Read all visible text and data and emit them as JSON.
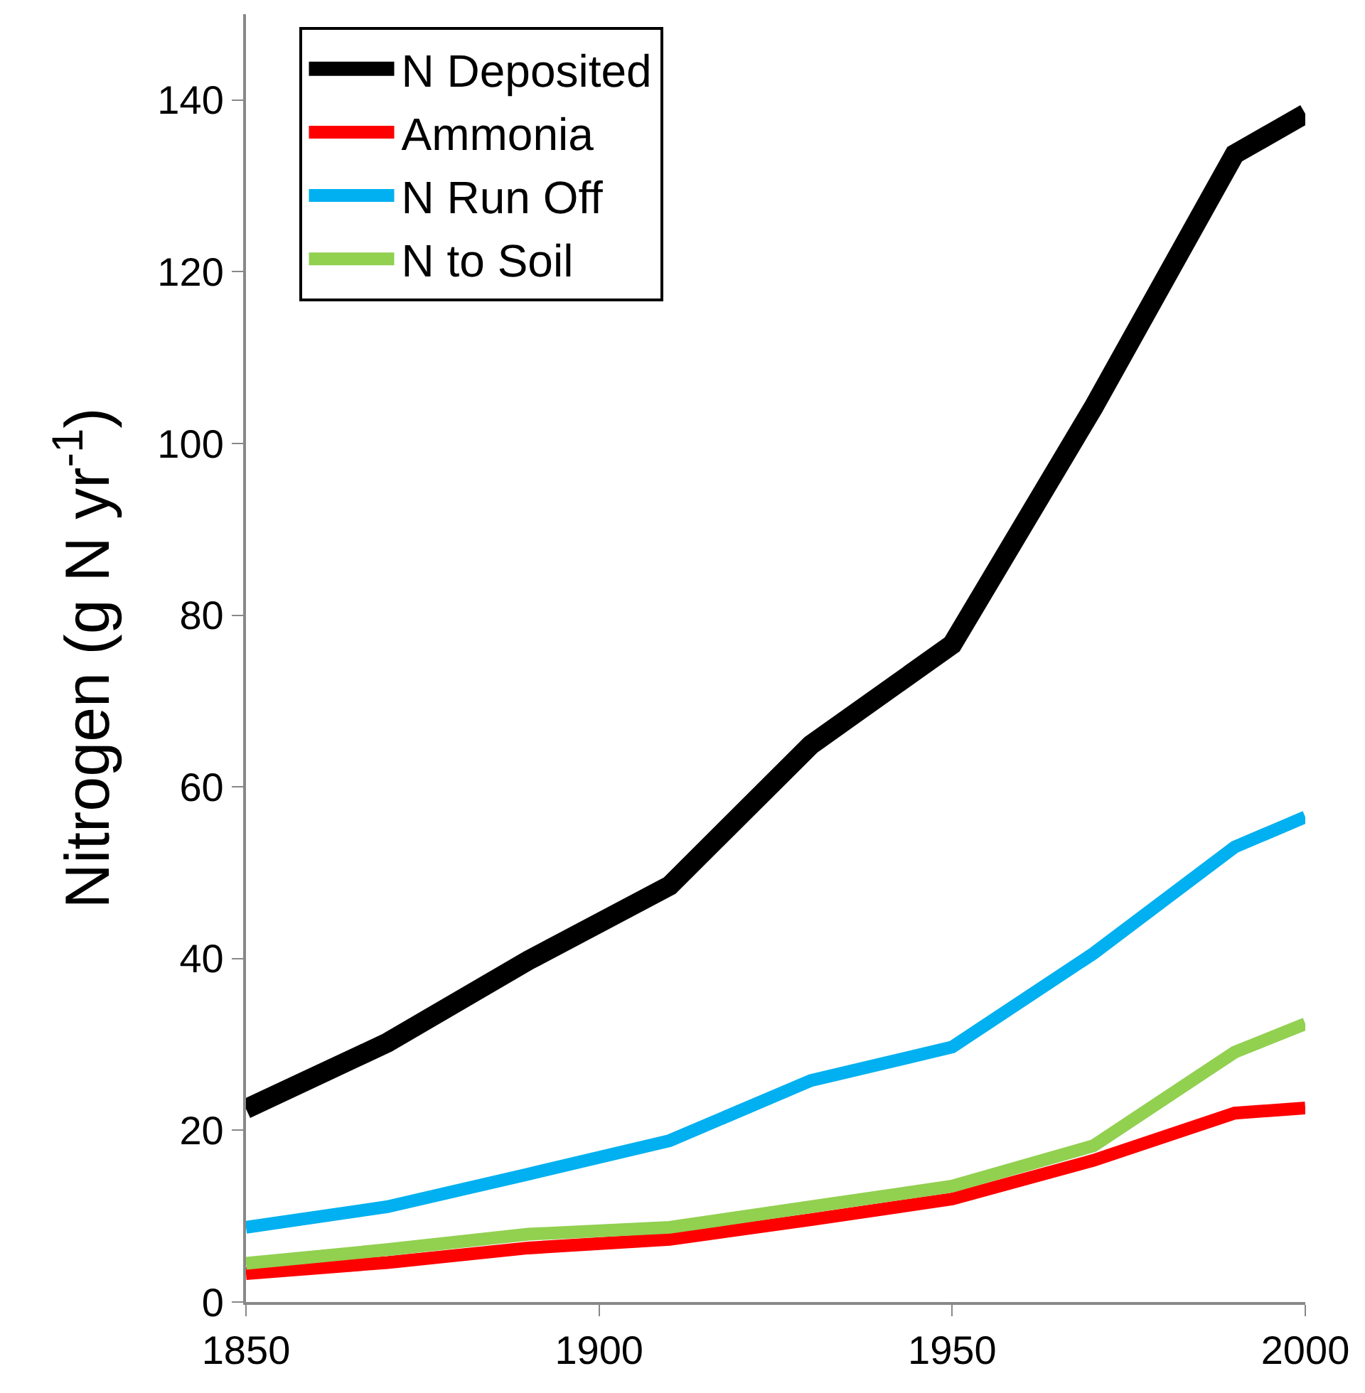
{
  "chart_data": {
    "type": "line",
    "ylabel": "Nitrogen (g N yr$^{-1}$)",
    "x": [
      1850,
      1870,
      1890,
      1910,
      1930,
      1950,
      1970,
      1990,
      2000
    ],
    "series": [
      {
        "name": "N Deposited",
        "color": "#000000",
        "values": [
          22.5,
          30.2,
          39.8,
          48.5,
          64.9,
          76.6,
          104.2,
          133.7,
          138.4
        ]
      },
      {
        "name": "Ammonia",
        "color": "#ff0000",
        "values": [
          3.3,
          4.6,
          6.3,
          7.3,
          9.6,
          12,
          16.5,
          22,
          22.6
        ]
      },
      {
        "name": "N Run Off",
        "color": "#00b0f0",
        "values": [
          8.7,
          11.1,
          14.9,
          18.8,
          25.8,
          29.7,
          40.6,
          53,
          56.5
        ]
      },
      {
        "name": "N to Soil",
        "color": "#92d050",
        "values": [
          4.5,
          6.1,
          7.9,
          8.7,
          11.1,
          13.5,
          18.2,
          29.1,
          32.4
        ]
      }
    ],
    "xlim": [
      1850,
      2000
    ],
    "xticks": [
      1850,
      1900,
      1950,
      2000
    ],
    "ylim": [
      0,
      150
    ],
    "yticks": [
      0,
      20,
      40,
      60,
      80,
      100,
      120,
      140
    ],
    "grid": false,
    "legend": "top left",
    "marker": "none",
    "line_style": "solid"
  }
}
